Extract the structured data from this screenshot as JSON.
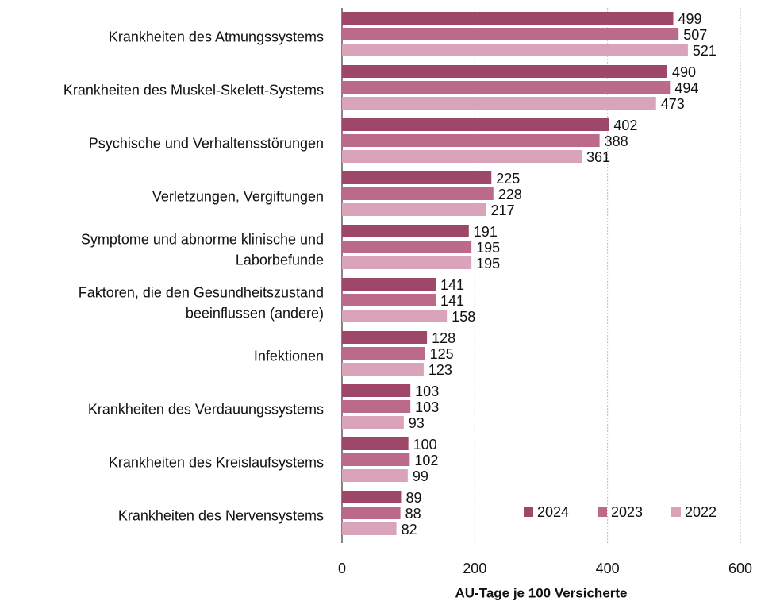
{
  "chart_data": {
    "type": "bar",
    "orientation": "horizontal",
    "xlabel": "AU-Tage je 100 Versicherte",
    "categories": [
      [
        "Krankheiten des Atmungssystems"
      ],
      [
        "Krankheiten des Muskel-Skelett-Systems"
      ],
      [
        "Psychische und Verhaltensstörungen"
      ],
      [
        "Verletzungen, Vergiftungen"
      ],
      [
        "Symptome und abnorme klinische und",
        "Laborbefunde"
      ],
      [
        "Faktoren, die den Gesundheitszustand",
        "beeinflussen (andere)"
      ],
      [
        "Infektionen"
      ],
      [
        "Krankheiten des Verdauungssystems"
      ],
      [
        "Krankheiten des Kreislaufsystems"
      ],
      [
        "Krankheiten des Nervensystems"
      ]
    ],
    "series": [
      {
        "name": "2024",
        "color": "#9e4768",
        "values": [
          499,
          490,
          402,
          225,
          191,
          141,
          128,
          103,
          100,
          89
        ]
      },
      {
        "name": "2023",
        "color": "#bc6a8a",
        "values": [
          507,
          494,
          388,
          228,
          195,
          141,
          125,
          103,
          102,
          88
        ]
      },
      {
        "name": "2022",
        "color": "#d9a3b9",
        "values": [
          521,
          473,
          361,
          217,
          195,
          158,
          123,
          93,
          99,
          82
        ]
      }
    ],
    "xlim": [
      0,
      600
    ],
    "xticks": [
      0,
      200,
      400,
      600
    ],
    "grid": true,
    "legend": "lower right"
  }
}
